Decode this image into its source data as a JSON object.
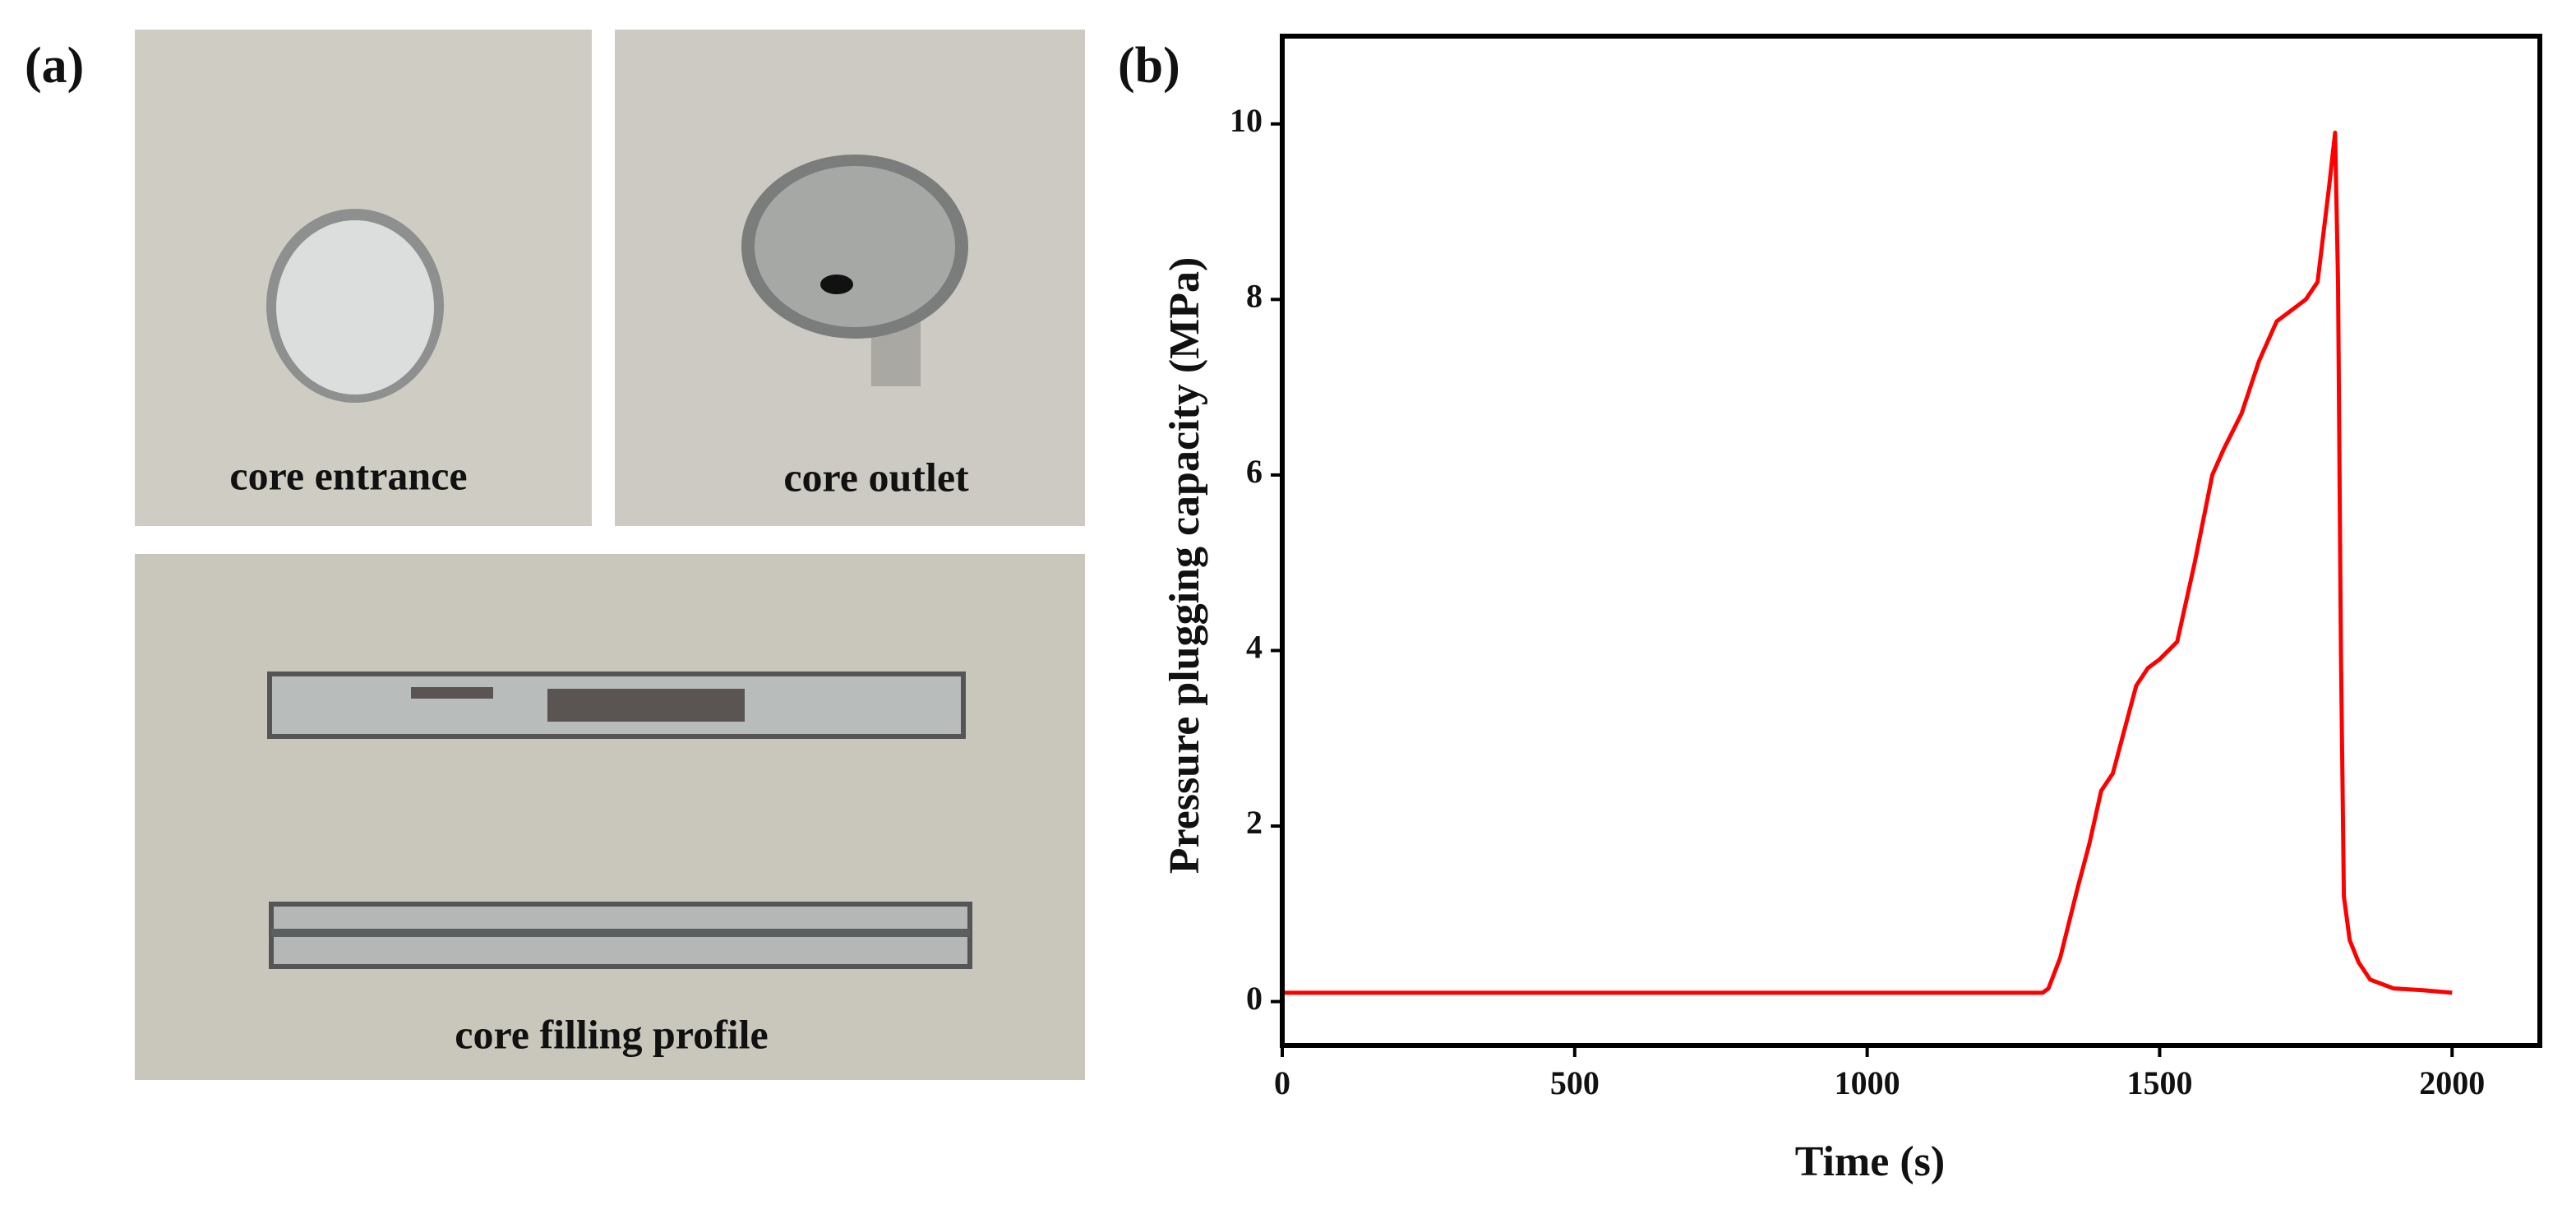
{
  "panel_a": {
    "label": "(a)",
    "photos": [
      "core entrance",
      "core outlet",
      "core filling profile"
    ]
  },
  "panel_b": {
    "label": "(b)"
  },
  "chart_data": {
    "type": "line",
    "x_label": "Time (s)",
    "y_label": "Pressure plugging capacity (MPa)",
    "x": [
      0,
      1300,
      1310,
      1330,
      1360,
      1380,
      1400,
      1420,
      1440,
      1460,
      1480,
      1500,
      1530,
      1560,
      1590,
      1610,
      1640,
      1670,
      1700,
      1720,
      1750,
      1770,
      1790,
      1800,
      1805,
      1810,
      1815,
      1825,
      1840,
      1860,
      1900,
      1950,
      2000
    ],
    "values": [
      0.1,
      0.1,
      0.15,
      0.5,
      1.3,
      1.8,
      2.4,
      2.6,
      3.1,
      3.6,
      3.8,
      3.9,
      4.1,
      5.0,
      6.0,
      6.3,
      6.7,
      7.3,
      7.75,
      7.85,
      8.0,
      8.2,
      9.3,
      9.9,
      8.2,
      4.0,
      1.2,
      0.7,
      0.45,
      0.25,
      0.15,
      0.13,
      0.1
    ],
    "color": "#ff0000",
    "xlim": [
      0,
      2150
    ],
    "ylim": [
      -0.5,
      11
    ],
    "xticks": [
      0,
      500,
      1000,
      1500,
      2000
    ],
    "yticks": [
      0,
      2,
      4,
      6,
      8,
      10
    ]
  }
}
